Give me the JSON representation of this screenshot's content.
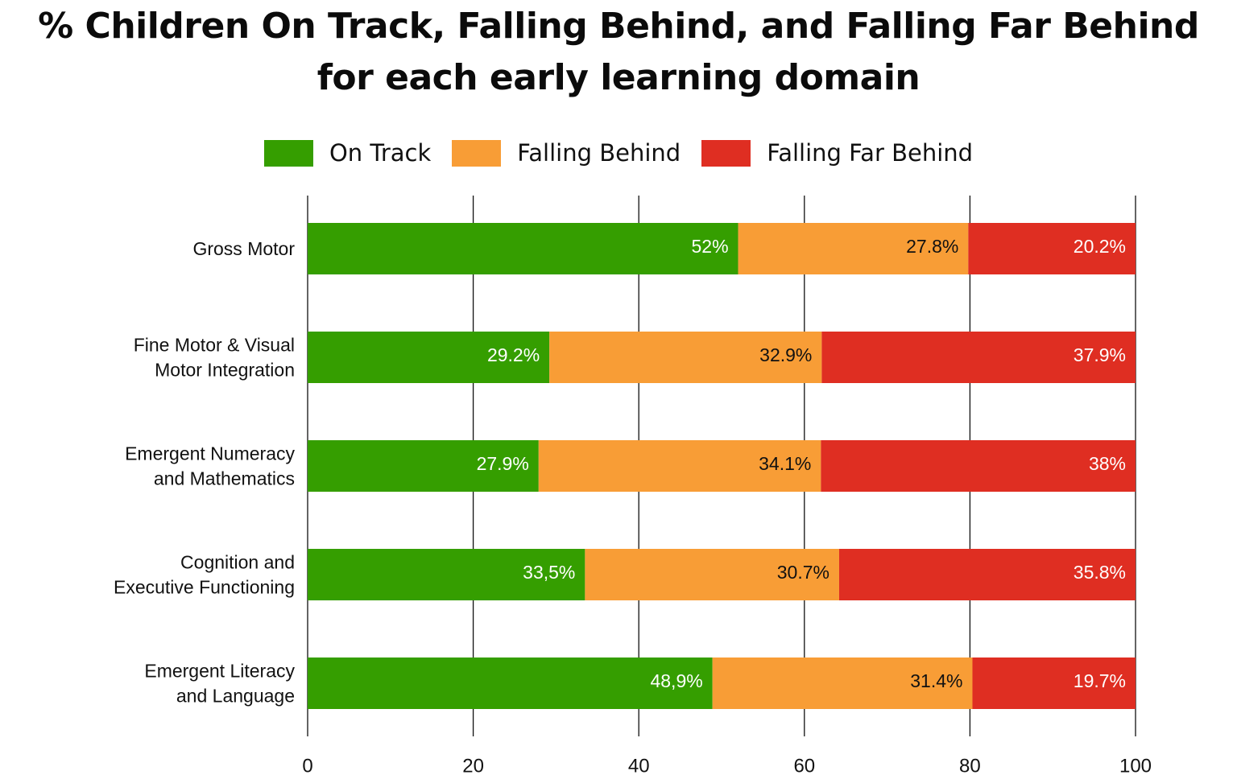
{
  "chart_data": {
    "type": "bar",
    "orientation": "horizontal",
    "stacked": true,
    "title_lines": [
      "% Children On Track, Falling Behind, and Falling Far Behind",
      "for each early learning domain"
    ],
    "categories": [
      [
        "Gross Motor"
      ],
      [
        "Fine Motor & Visual",
        "Motor Integration"
      ],
      [
        "Emergent Numeracy",
        "and Mathematics"
      ],
      [
        "Cognition and",
        "Executive Functioning"
      ],
      [
        "Emergent Literacy",
        "and Language"
      ]
    ],
    "series": [
      {
        "name": "On Track",
        "color": "#359e00",
        "label_color": "#ffffff",
        "values": [
          52,
          29.2,
          27.9,
          33.5,
          48.9
        ],
        "labels": [
          "52%",
          "29.2%",
          "27.9%",
          "33,5%",
          "48,9%"
        ]
      },
      {
        "name": "Falling Behind",
        "color": "#f89d36",
        "label_color": "#111111",
        "values": [
          27.8,
          32.9,
          34.1,
          30.7,
          31.4
        ],
        "labels": [
          "27.8%",
          "32.9%",
          "34.1%",
          "30.7%",
          "31.4%"
        ]
      },
      {
        "name": "Falling Far Behind",
        "color": "#df2e22",
        "label_color": "#ffffff",
        "values": [
          20.2,
          37.9,
          38,
          35.8,
          19.7
        ],
        "labels": [
          "20.2%",
          "37.9%",
          "38%",
          "35.8%",
          "19.7%"
        ]
      }
    ],
    "xlim": [
      0,
      100
    ],
    "xticks": [
      0,
      20,
      40,
      60,
      80,
      100
    ],
    "xtick_labels": [
      "0",
      "20",
      "40",
      "60",
      "80",
      "100"
    ],
    "grid": true,
    "legend_position": "top-center"
  }
}
